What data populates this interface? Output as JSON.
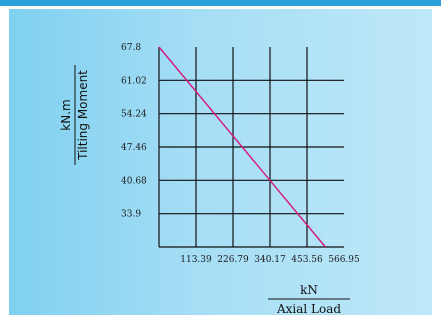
{
  "style": {
    "top_bar_color": "#2b9fd9",
    "grid_color": "#111111",
    "line_color": "#d6177e"
  },
  "chart_data": {
    "type": "line",
    "title": "",
    "xlabel": "Axial Load",
    "xunit": "kN",
    "ylabel": "Tilting Moment",
    "yunit": "kN.m",
    "xlim": [
      0,
      566.95
    ],
    "ylim": [
      27.12,
      67.8
    ],
    "x_ticks": [
      "113.39",
      "226.79",
      "340.17",
      "453.56",
      "566.95"
    ],
    "y_ticks": [
      "67.8",
      "61.02",
      "54.24",
      "47.46",
      "40.68",
      "33.9"
    ],
    "grid": true,
    "series": [
      {
        "x": [
          0,
          510
        ],
        "y": [
          67.8,
          27.12
        ]
      }
    ]
  }
}
